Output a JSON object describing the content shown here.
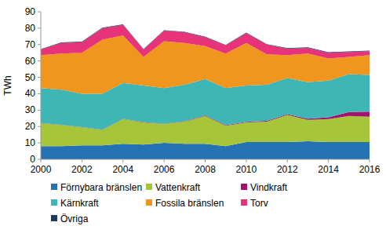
{
  "chart_data": {
    "type": "area",
    "stacked": true,
    "grid": false,
    "y_label": "TWh",
    "x": [
      2000,
      2001,
      2002,
      2003,
      2004,
      2005,
      2006,
      2007,
      2008,
      2009,
      2010,
      2011,
      2012,
      2013,
      2014,
      2015,
      2016
    ],
    "xlim": [
      2000,
      2016
    ],
    "xticks": [
      2000,
      2002,
      2004,
      2006,
      2008,
      2010,
      2012,
      2014,
      2016
    ],
    "ylim": [
      0,
      90
    ],
    "yticks": [
      0,
      10,
      20,
      30,
      40,
      50,
      60,
      70,
      80,
      90
    ],
    "legend": "bottom",
    "series": [
      {
        "name": "Förnybara bränslen",
        "color": "#2471b3",
        "values": [
          8,
          8,
          8.5,
          8.5,
          9.5,
          9,
          10,
          9.5,
          9.5,
          8,
          10.5,
          10.5,
          10.5,
          11,
          10.5,
          10.5,
          10.5
        ]
      },
      {
        "name": "Vattenkraft",
        "color": "#a6c53a",
        "values": [
          14,
          13,
          11,
          9.5,
          15,
          13.5,
          11.5,
          13.5,
          17,
          12.5,
          12,
          12.5,
          16.5,
          13,
          14,
          16,
          15.5
        ]
      },
      {
        "name": "Vindkraft",
        "color": "#a3126e",
        "values": [
          0.1,
          0.1,
          0.1,
          0.1,
          0.1,
          0.2,
          0.2,
          0.2,
          0.3,
          0.3,
          0.3,
          0.5,
          0.5,
          0.8,
          1.1,
          2.3,
          3.1
        ]
      },
      {
        "name": "Kärnkraft",
        "color": "#3eb6b6",
        "values": [
          21.4,
          21.4,
          20.4,
          21.9,
          21.9,
          22.3,
          21.8,
          22.3,
          22.2,
          22.7,
          22.2,
          22,
          22,
          22.2,
          22.4,
          23.2,
          22.4
        ]
      },
      {
        "name": "Fossila bränslen",
        "color": "#f0961e",
        "values": [
          20,
          22,
          25,
          33,
          29,
          17.5,
          28.5,
          25.5,
          20,
          21,
          26,
          18.5,
          14,
          17.5,
          13.5,
          10.5,
          12
        ]
      },
      {
        "name": "Torv",
        "color": "#e6337a",
        "values": [
          3.5,
          6.5,
          6.5,
          7,
          6.5,
          4.5,
          6.5,
          6.5,
          5.5,
          5,
          6,
          6,
          4,
          3.5,
          3.5,
          3,
          2.5
        ]
      },
      {
        "name": "Övriga",
        "color": "#1c3a5e",
        "values": [
          0.3,
          0.3,
          0.3,
          0.3,
          0.3,
          0.3,
          0.3,
          0.3,
          0.3,
          0.3,
          0.3,
          0.3,
          0.3,
          0.3,
          0.3,
          0.3,
          0.3
        ]
      }
    ]
  }
}
